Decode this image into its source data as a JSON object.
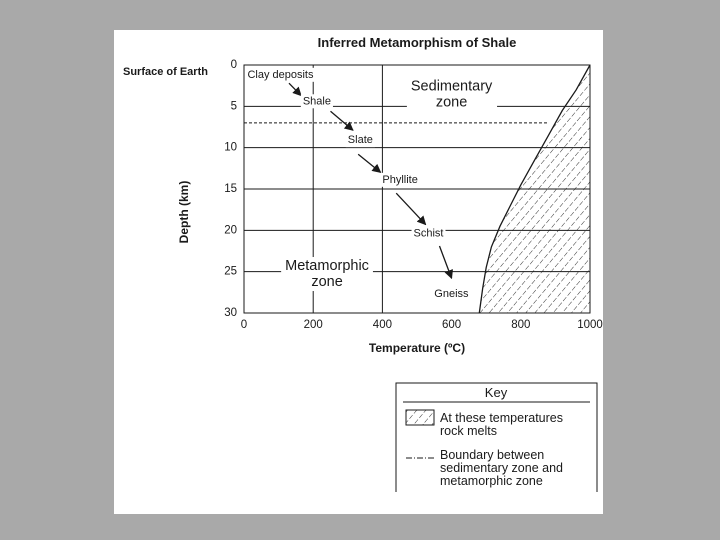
{
  "chart_data": {
    "type": "line",
    "title": "Inferred Metamorphism of Shale",
    "xlabel": "Temperature (ºC)",
    "ylabel": "Depth (km)",
    "xlim": [
      0,
      1000
    ],
    "ylim": [
      0,
      30
    ],
    "y_inverted": true,
    "grid": "horizontal lines every 5 km; vertical lines at 200 and 400 ºC",
    "x_ticks": [
      "0",
      "200",
      "400",
      "600",
      "800",
      "1000"
    ],
    "y_ticks": [
      "0",
      "5",
      "10",
      "15",
      "20",
      "25",
      "30"
    ],
    "surface_label": "Surface of Earth",
    "melting_curve": {
      "x": [
        1000,
        960,
        920,
        880,
        840,
        800,
        770,
        740,
        715,
        700,
        690,
        680
      ],
      "y": [
        0,
        3,
        5.5,
        8.5,
        11.5,
        14.5,
        17,
        19.5,
        22,
        24.5,
        27,
        30
      ]
    },
    "boundary_depth": 7,
    "sequence": [
      {
        "label": "Clay deposits",
        "x": 10,
        "y": 1.2
      },
      {
        "label": "Shale",
        "x": 170,
        "y": 4.4
      },
      {
        "label": "Slate",
        "x": 300,
        "y": 9.1
      },
      {
        "label": "Phyllite",
        "x": 400,
        "y": 13.9
      },
      {
        "label": "Schist",
        "x": 490,
        "y": 20.4
      },
      {
        "label": "Gneiss",
        "x": 550,
        "y": 27.7
      }
    ],
    "arrows": [
      {
        "from": [
          130,
          2.2
        ],
        "to": [
          165,
          3.7
        ]
      },
      {
        "from": [
          250,
          5.6
        ],
        "to": [
          315,
          7.9
        ]
      },
      {
        "from": [
          330,
          10.8
        ],
        "to": [
          395,
          13
        ]
      },
      {
        "from": [
          440,
          15.5
        ],
        "to": [
          525,
          19.3
        ]
      },
      {
        "from": [
          565,
          21.9
        ],
        "to": [
          600,
          25.8
        ]
      }
    ],
    "zones": [
      {
        "name": "sedimentary",
        "lines": [
          "Sedimentary",
          "zone"
        ],
        "x": 600,
        "y": 3.1
      },
      {
        "name": "metamorphic",
        "lines": [
          "Metamorphic",
          "zone"
        ],
        "x": 240,
        "y": 24.8
      }
    ],
    "key": {
      "title": "Key",
      "melt_label": [
        "At these temperatures",
        "rock melts"
      ],
      "boundary_label": [
        "Boundary between",
        "sedimentary zone and",
        "metamorphic zone"
      ]
    }
  }
}
